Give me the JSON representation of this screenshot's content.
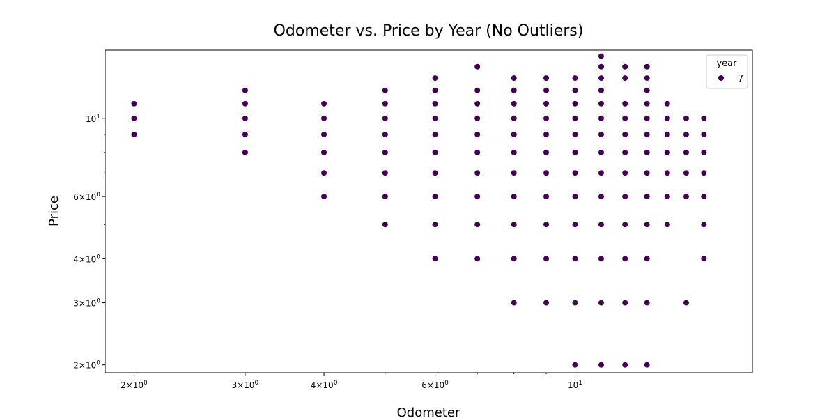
{
  "chart_data": {
    "type": "scatter",
    "title": "Odometer vs. Price by Year (No Outliers)",
    "xlabel": "Odometer",
    "ylabel": "Price",
    "x_scale": "log",
    "y_scale": "log",
    "xlim": [
      1.8,
      19.1
    ],
    "ylim": [
      1.9,
      15.6
    ],
    "grid": false,
    "legend": {
      "title": "year",
      "placement": "top-right",
      "entries": [
        {
          "label": "7",
          "color": "#440154"
        }
      ]
    },
    "x_ticks": [
      {
        "value": 2,
        "base": "2",
        "exp": "0"
      },
      {
        "value": 3,
        "base": "3",
        "exp": "0"
      },
      {
        "value": 4,
        "base": "4",
        "exp": "0"
      },
      {
        "value": 6,
        "base": "6",
        "exp": "0"
      },
      {
        "value": 10,
        "base": "10",
        "exp": "1"
      }
    ],
    "y_ticks": [
      {
        "value": 2,
        "base": "2",
        "exp": "0"
      },
      {
        "value": 3,
        "base": "3",
        "exp": "0"
      },
      {
        "value": 4,
        "base": "4",
        "exp": "0"
      },
      {
        "value": 6,
        "base": "6",
        "exp": "0"
      },
      {
        "value": 10,
        "base": "10",
        "exp": "1"
      }
    ],
    "series": [
      {
        "name": "7",
        "color": "#440154",
        "points": [
          {
            "x": 2,
            "ys": [
              9,
              10,
              11
            ]
          },
          {
            "x": 3,
            "ys": [
              8,
              9,
              10,
              11,
              12
            ]
          },
          {
            "x": 4,
            "ys": [
              6,
              7,
              8,
              9,
              10,
              11
            ]
          },
          {
            "x": 5,
            "ys": [
              5,
              6,
              7,
              8,
              9,
              10,
              11,
              12
            ]
          },
          {
            "x": 6,
            "ys": [
              4,
              5,
              6,
              7,
              8,
              9,
              10,
              11,
              12,
              13
            ]
          },
          {
            "x": 7,
            "ys": [
              4,
              5,
              6,
              7,
              8,
              9,
              10,
              11,
              12,
              14
            ]
          },
          {
            "x": 8,
            "ys": [
              3,
              4,
              5,
              6,
              7,
              8,
              9,
              10,
              11,
              12,
              13
            ]
          },
          {
            "x": 9,
            "ys": [
              3,
              4,
              5,
              6,
              7,
              8,
              9,
              10,
              11,
              12,
              13
            ]
          },
          {
            "x": 10,
            "ys": [
              2,
              3,
              4,
              5,
              6,
              7,
              8,
              9,
              10,
              11,
              12,
              13
            ]
          },
          {
            "x": 11,
            "ys": [
              2,
              3,
              4,
              5,
              6,
              7,
              8,
              9,
              10,
              11,
              12,
              13,
              14,
              15
            ]
          },
          {
            "x": 12,
            "ys": [
              2,
              3,
              4,
              5,
              6,
              7,
              8,
              9,
              10,
              11,
              13,
              14
            ]
          },
          {
            "x": 13,
            "ys": [
              2,
              3,
              4,
              5,
              6,
              7,
              8,
              9,
              10,
              11,
              12,
              13,
              14
            ]
          },
          {
            "x": 14,
            "ys": [
              5,
              6,
              7,
              8,
              9,
              10,
              11
            ]
          },
          {
            "x": 15,
            "ys": [
              3,
              6,
              7,
              8,
              9,
              10
            ]
          },
          {
            "x": 16,
            "ys": [
              4,
              5,
              6,
              7,
              8,
              9,
              10
            ]
          }
        ]
      }
    ]
  }
}
